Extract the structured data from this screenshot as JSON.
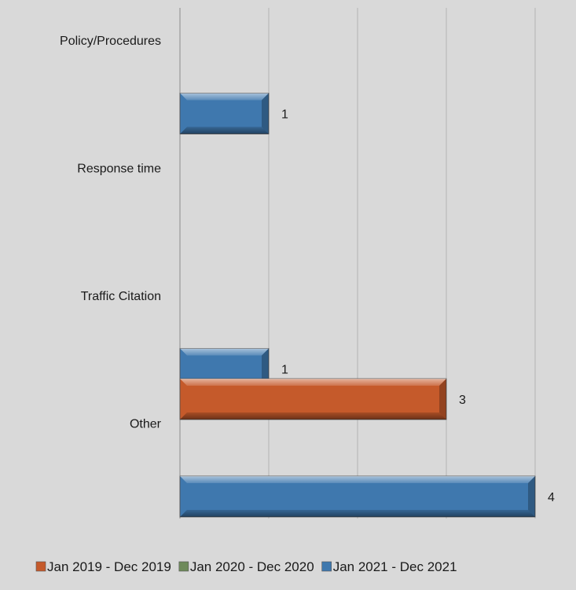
{
  "chart_data": {
    "type": "bar",
    "orientation": "horizontal",
    "categories": [
      "Policy/Procedures",
      "Response time",
      "Traffic Citation",
      "Other"
    ],
    "series": [
      {
        "name": "Jan 2019 - Dec 2019",
        "color": "#c55a2b",
        "values": [
          null,
          null,
          null,
          3
        ]
      },
      {
        "name": "Jan 2020 - Dec 2020",
        "color": "#6e8a5a",
        "values": [
          null,
          null,
          null,
          null
        ]
      },
      {
        "name": "Jan 2021 - Dec 2021",
        "color": "#3f78ae",
        "values": [
          1,
          null,
          1,
          4
        ]
      }
    ],
    "xlim": [
      0,
      4
    ],
    "grid": true,
    "legend_position": "bottom"
  }
}
